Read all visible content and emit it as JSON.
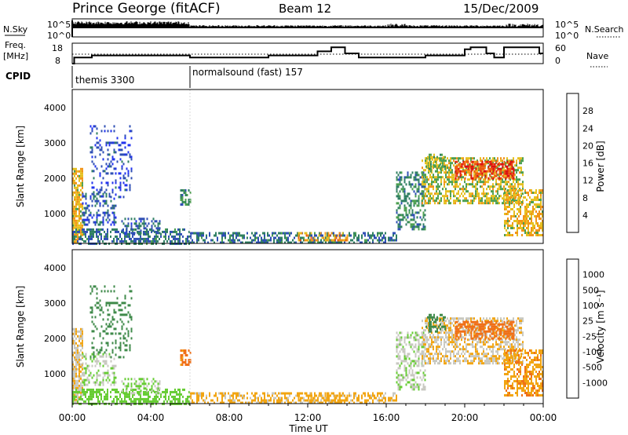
{
  "header": {
    "station": "Prince George (fitACF)",
    "beam": "Beam 12",
    "date": "15/Dec/2009"
  },
  "sky_panel": {
    "left_label": "N.Sky",
    "right_label": "N.Search",
    "left_ticks": [
      "10^5",
      "10^0"
    ],
    "right_ticks": [
      "10^5",
      "10^0"
    ]
  },
  "freq_panel": {
    "left_label_1": "Freq.",
    "left_label_2": "[MHz]",
    "right_label": "Nave",
    "left_ticks": [
      "18",
      "8"
    ],
    "right_ticks": [
      "60",
      "0"
    ]
  },
  "cpid": {
    "label": "CPID",
    "modes": [
      "themis 3300",
      "normalsound (fast) 157"
    ]
  },
  "time_axis": {
    "ticks": [
      "00:00",
      "04:00",
      "08:00",
      "12:00",
      "16:00",
      "20:00",
      "00:00"
    ],
    "label": "Time UT"
  },
  "power_panel": {
    "ylabel": "Slant Range [km]",
    "yticks": [
      "4000",
      "3000",
      "2000",
      "1000"
    ],
    "colorbar_label": "Power [dB]",
    "colorbar_ticks": [
      "28",
      "24",
      "20",
      "16",
      "12",
      "8",
      "4"
    ]
  },
  "velocity_panel": {
    "ylabel": "Slant Range [km]",
    "yticks": [
      "4000",
      "3000",
      "2000",
      "1000"
    ],
    "colorbar_label": "Velocity  [m s⁻¹]",
    "colorbar_ticks": [
      "1000",
      "500",
      "100",
      "25",
      "-25",
      "-100",
      "-500",
      "-1000"
    ]
  },
  "colors": {
    "power_scale": [
      "#2233ee",
      "#2f4fb4",
      "#2f7f62",
      "#4d9f50",
      "#e6c020",
      "#f29418",
      "#ee5a10",
      "#dd1212"
    ],
    "velocity_scale": [
      "#2222cc",
      "#2f55a8",
      "#3f8a4a",
      "#66cc33",
      "#c8c8c0",
      "#f2a512",
      "#f07018",
      "#ea4212",
      "#dd1111"
    ]
  },
  "chart_data": {
    "type": "heatmap",
    "x_range_hours": [
      0,
      24
    ],
    "y_range_km": [
      180,
      4500
    ],
    "power_db_range": [
      0,
      30
    ],
    "velocity_ms_range": [
      -1000,
      1000
    ],
    "cpid_change_hour": 6,
    "freq_mhz_segments": [
      {
        "t0": 0,
        "t1": 0.1,
        "freq": 8
      },
      {
        "t0": 0.1,
        "t1": 1,
        "freq": 11
      },
      {
        "t0": 1,
        "t1": 6,
        "freq": 12
      },
      {
        "t0": 6,
        "t1": 10,
        "freq": 11
      },
      {
        "t0": 10,
        "t1": 12.5,
        "freq": 12
      },
      {
        "t0": 12.5,
        "t1": 13.2,
        "freq": 14
      },
      {
        "t0": 13.2,
        "t1": 13.9,
        "freq": 16
      },
      {
        "t0": 13.9,
        "t1": 14.6,
        "freq": 13
      },
      {
        "t0": 14.6,
        "t1": 18,
        "freq": 11
      },
      {
        "t0": 18,
        "t1": 20,
        "freq": 12
      },
      {
        "t0": 20,
        "t1": 20.3,
        "freq": 15
      },
      {
        "t0": 20.3,
        "t1": 21.1,
        "freq": 16
      },
      {
        "t0": 21.1,
        "t1": 21.5,
        "freq": 13
      },
      {
        "t0": 21.5,
        "t1": 22,
        "freq": 11
      },
      {
        "t0": 22,
        "t1": 23.8,
        "freq": 16
      },
      {
        "t0": 23.8,
        "t1": 24,
        "freq": 13
      }
    ],
    "nave_reference": 35,
    "scatter_regions": [
      {
        "t0": 0.0,
        "t1": 0.5,
        "r0": 200,
        "r1": 2300,
        "power": 18,
        "vel": -20,
        "density": 0.75
      },
      {
        "t0": 0.0,
        "t1": 6.0,
        "r0": 200,
        "r1": 600,
        "power": 8,
        "vel": 60,
        "density": 0.55
      },
      {
        "t0": 0.5,
        "t1": 2.2,
        "r0": 700,
        "r1": 1600,
        "power": 6,
        "vel": 20,
        "density": 0.4
      },
      {
        "t0": 0.9,
        "t1": 3.0,
        "r0": 1500,
        "r1": 3500,
        "power": 4,
        "vel": 300,
        "density": 0.22
      },
      {
        "t0": 2.5,
        "t1": 4.5,
        "r0": 500,
        "r1": 900,
        "power": 7,
        "vel": 30,
        "density": 0.45
      },
      {
        "t0": 5.5,
        "t1": 6.0,
        "r0": 1300,
        "r1": 1700,
        "power": 10,
        "vel": -150,
        "density": 0.45
      },
      {
        "t0": 6.0,
        "t1": 16.5,
        "r0": 200,
        "r1": 500,
        "power": 8,
        "vel": -40,
        "density": 0.5
      },
      {
        "t0": 11.5,
        "t1": 14.0,
        "r0": 250,
        "r1": 500,
        "power": 20,
        "vel": -60,
        "density": 0.4
      },
      {
        "t0": 16.5,
        "t1": 18.0,
        "r0": 600,
        "r1": 2200,
        "power": 10,
        "vel": 10,
        "density": 0.45
      },
      {
        "t0": 17.8,
        "t1": 23.0,
        "r0": 1300,
        "r1": 2600,
        "power": 16,
        "vel": -20,
        "density": 0.6
      },
      {
        "t0": 19.5,
        "t1": 22.5,
        "r0": 2000,
        "r1": 2500,
        "power": 26,
        "vel": -250,
        "density": 0.6
      },
      {
        "t0": 18.0,
        "t1": 19.0,
        "r0": 2200,
        "r1": 2700,
        "power": 14,
        "vel": 200,
        "density": 0.4
      },
      {
        "t0": 22.0,
        "t1": 24.0,
        "r0": 400,
        "r1": 1700,
        "power": 18,
        "vel": -80,
        "density": 0.55
      }
    ]
  }
}
